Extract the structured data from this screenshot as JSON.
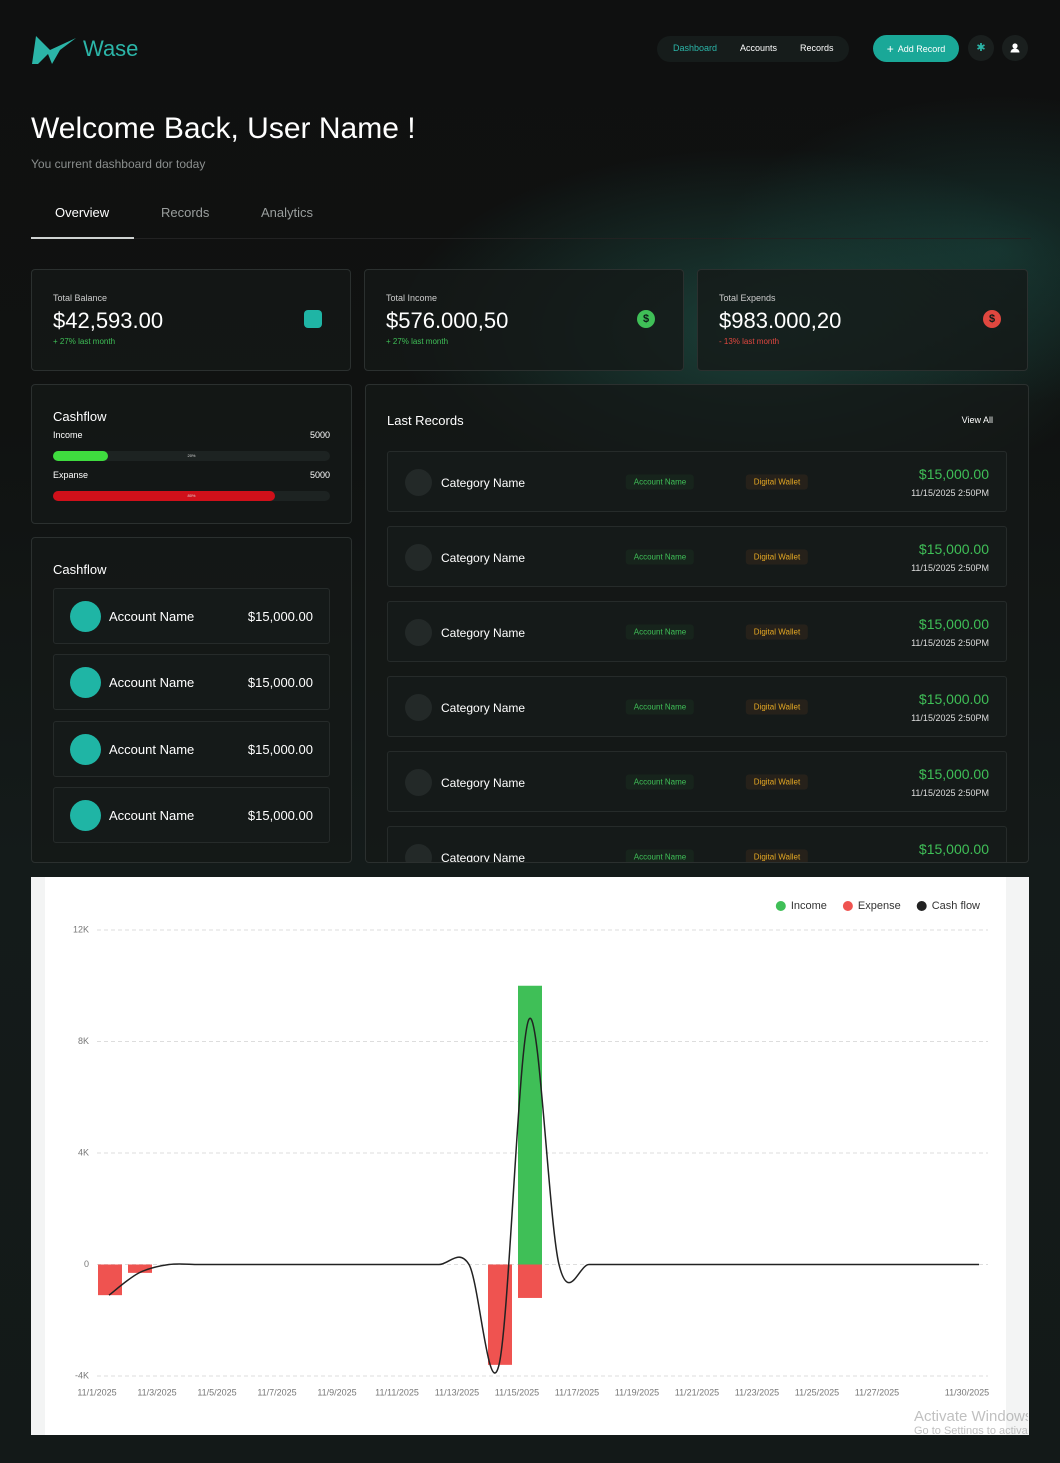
{
  "header": {
    "brand": "Wase",
    "nav": [
      "Dashboard",
      "Accounts",
      "Records"
    ],
    "add_button": "Add Record"
  },
  "welcome": {
    "title": "Welcome Back, User Name !",
    "subtitle": "You current dashboard dor today"
  },
  "tabs": [
    "Overview",
    "Records",
    "Analytics"
  ],
  "stats": [
    {
      "label": "Total Balance",
      "value": "$42,593.00",
      "change": "+ 27% last month"
    },
    {
      "label": "Total Income",
      "value": "$576.000,50",
      "change": "+ 27% last month"
    },
    {
      "label": "Total Expends",
      "value": "$983.000,20",
      "change": "- 13% last month"
    }
  ],
  "cashflow": {
    "title": "Cashflow",
    "rows": [
      {
        "label": "Income",
        "amount": 5000,
        "percent": 20,
        "percent_label": "20%"
      },
      {
        "label": "Expanse",
        "amount": 5000,
        "percent": 80,
        "percent_label": "80%"
      }
    ]
  },
  "accounts": {
    "title": "Cashflow",
    "items": [
      {
        "name": "Account Name",
        "amount": "$15,000.00"
      },
      {
        "name": "Account Name",
        "amount": "$15,000.00"
      },
      {
        "name": "Account Name",
        "amount": "$15,000.00"
      },
      {
        "name": "Account Name",
        "amount": "$15,000.00"
      }
    ]
  },
  "records": {
    "title": "Last Records",
    "view_all": "View All",
    "items": [
      {
        "category": "Category Name",
        "account": "Account Name",
        "wallet": "Digital Wallet",
        "amount": "$15,000.00",
        "date": "11/15/2025 2:50PM"
      },
      {
        "category": "Category Name",
        "account": "Account Name",
        "wallet": "Digital Wallet",
        "amount": "$15,000.00",
        "date": "11/15/2025 2:50PM"
      },
      {
        "category": "Category Name",
        "account": "Account Name",
        "wallet": "Digital Wallet",
        "amount": "$15,000.00",
        "date": "11/15/2025 2:50PM"
      },
      {
        "category": "Category Name",
        "account": "Account Name",
        "wallet": "Digital Wallet",
        "amount": "$15,000.00",
        "date": "11/15/2025 2:50PM"
      },
      {
        "category": "Category Name",
        "account": "Account Name",
        "wallet": "Digital Wallet",
        "amount": "$15,000.00",
        "date": "11/15/2025 2:50PM"
      },
      {
        "category": "Category Name",
        "account": "Account Name",
        "wallet": "Digital Wallet",
        "amount": "$15,000.00"
      }
    ]
  },
  "chart_data": {
    "type": "bar",
    "categories": [
      "11/1/2025",
      null,
      "11/3/2025",
      null,
      "11/5/2025",
      null,
      "11/7/2025",
      null,
      "11/9/2025",
      null,
      "11/11/2025",
      null,
      "11/13/2025",
      null,
      "11/15/2025",
      null,
      "11/17/2025",
      null,
      "11/19/2025",
      null,
      "11/21/2025",
      null,
      "11/23/2025",
      null,
      "11/25/2025",
      null,
      "11/27/2025",
      null,
      null,
      "11/30/2025"
    ],
    "series": [
      {
        "name": "Income",
        "color": "#3fbf57",
        "type": "bar",
        "values": [
          0,
          0,
          0,
          0,
          0,
          0,
          0,
          0,
          0,
          0,
          0,
          0,
          0,
          0,
          10000,
          0,
          0,
          0,
          0,
          0,
          0,
          0,
          0,
          0,
          0,
          0,
          0,
          0,
          0,
          0
        ]
      },
      {
        "name": "Expense",
        "color": "#ef5350",
        "type": "bar",
        "values": [
          -1100,
          -300,
          0,
          0,
          0,
          0,
          0,
          0,
          0,
          0,
          0,
          0,
          0,
          -3600,
          -1200,
          0,
          0,
          0,
          0,
          0,
          0,
          0,
          0,
          0,
          0,
          0,
          0,
          0,
          0,
          0
        ]
      },
      {
        "name": "Cash flow",
        "color": "#222222",
        "type": "line",
        "values": [
          -1100,
          -300,
          0,
          0,
          0,
          0,
          0,
          0,
          0,
          0,
          0,
          0,
          0,
          -3600,
          8800,
          0,
          0,
          0,
          0,
          0,
          0,
          0,
          0,
          0,
          0,
          0,
          0,
          0,
          0,
          0
        ]
      }
    ],
    "ylim": [
      -4000,
      12000
    ],
    "yticks": [
      {
        "value": -4000,
        "label": "-4K"
      },
      0,
      {
        "value": 4000,
        "label": "4K"
      },
      {
        "value": 8000,
        "label": "8K"
      },
      {
        "value": 12000,
        "label": "12K"
      }
    ],
    "grid": true,
    "legend": "top-right"
  },
  "watermark": [
    "Activate Windows",
    "Go to Settings to activate Windows."
  ]
}
